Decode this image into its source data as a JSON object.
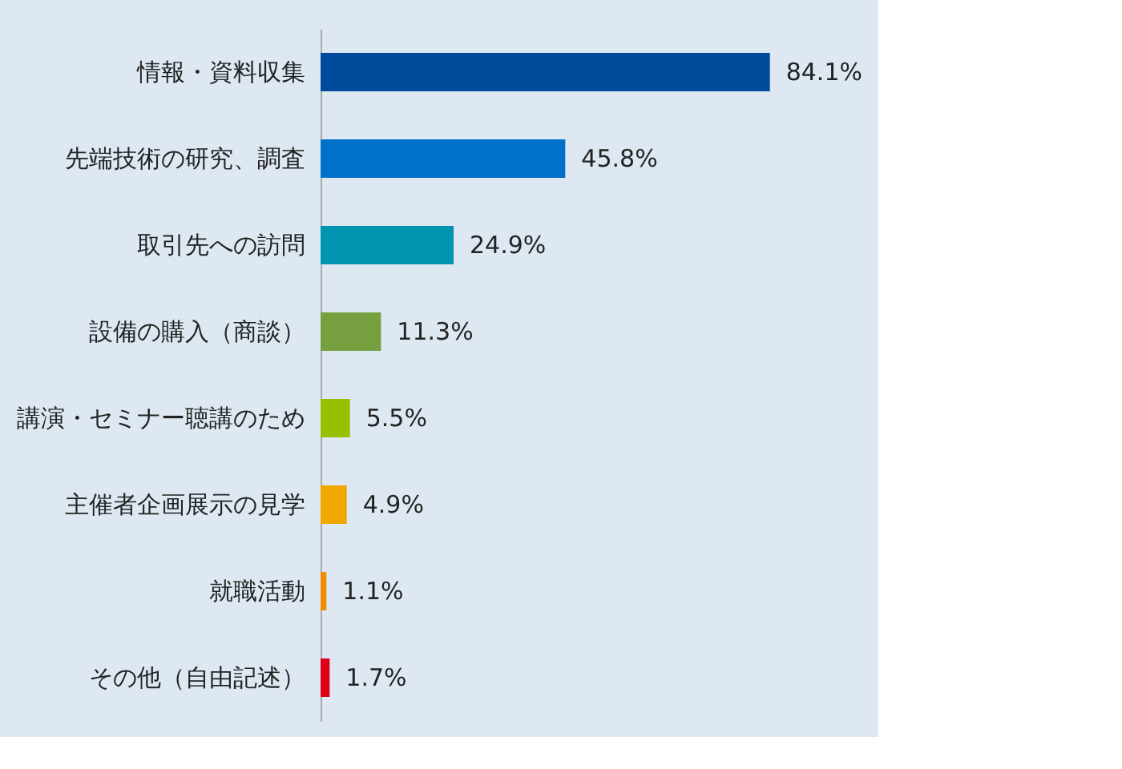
{
  "chart_data": {
    "type": "bar",
    "orientation": "horizontal",
    "categories": [
      "情報・資料収集",
      "先端技術の研究、調査",
      "取引先への訪問",
      "設備の購入（商談）",
      "講演・セミナー聴講のため",
      "主催者企画展示の見学",
      "就職活動",
      "その他（自由記述）"
    ],
    "values": [
      84.1,
      45.8,
      24.9,
      11.3,
      5.5,
      4.9,
      1.1,
      1.7
    ],
    "colors": [
      "#004a9c",
      "#0070c8",
      "#0094b0",
      "#76a040",
      "#99c000",
      "#f0a800",
      "#f08c00",
      "#e0001a"
    ],
    "value_labels": [
      "84.1%",
      "45.8%",
      "24.9%",
      "11.3%",
      "5.5%",
      "4.9%",
      "1.1%",
      "1.7%"
    ]
  }
}
